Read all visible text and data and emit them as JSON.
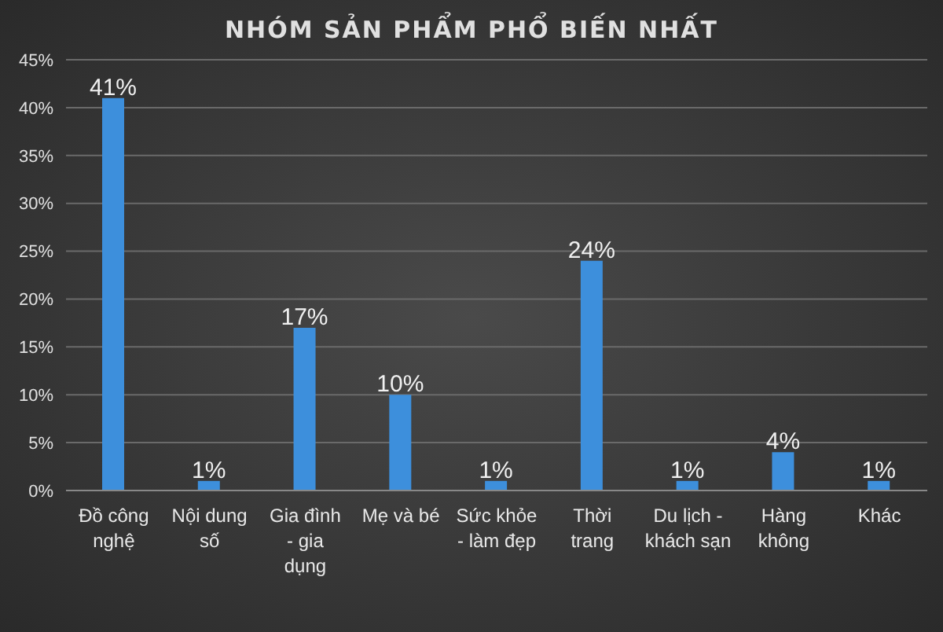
{
  "chart_data": {
    "type": "bar",
    "title": "NHÓM SẢN PHẨM PHỔ BIẾN NHẤT",
    "categories": [
      "Đồ công nghệ",
      "Nội dung số",
      "Gia đình - gia dụng",
      "Mẹ và bé",
      "Sức khỏe - làm đẹp",
      "Thời trang",
      "Du lịch - khách sạn",
      "Hàng không",
      "Khác"
    ],
    "values": [
      41,
      1,
      17,
      10,
      1,
      24,
      1,
      4,
      1
    ],
    "value_labels": [
      "41%",
      "1%",
      "17%",
      "10%",
      "1%",
      "24%",
      "1%",
      "4%",
      "1%"
    ],
    "color": "#3d8fdc",
    "ylim": [
      0,
      45
    ],
    "yticks": [
      {
        "value": 0,
        "label": "0%"
      },
      {
        "value": 5,
        "label": "5%"
      },
      {
        "value": 10,
        "label": "10%"
      },
      {
        "value": 15,
        "label": "15%"
      },
      {
        "value": 20,
        "label": "20%"
      },
      {
        "value": 25,
        "label": "25%"
      },
      {
        "value": 30,
        "label": "30%"
      },
      {
        "value": 35,
        "label": "35%"
      },
      {
        "value": 40,
        "label": "40%"
      },
      {
        "value": 45,
        "label": "45%"
      }
    ],
    "grid": "y"
  }
}
